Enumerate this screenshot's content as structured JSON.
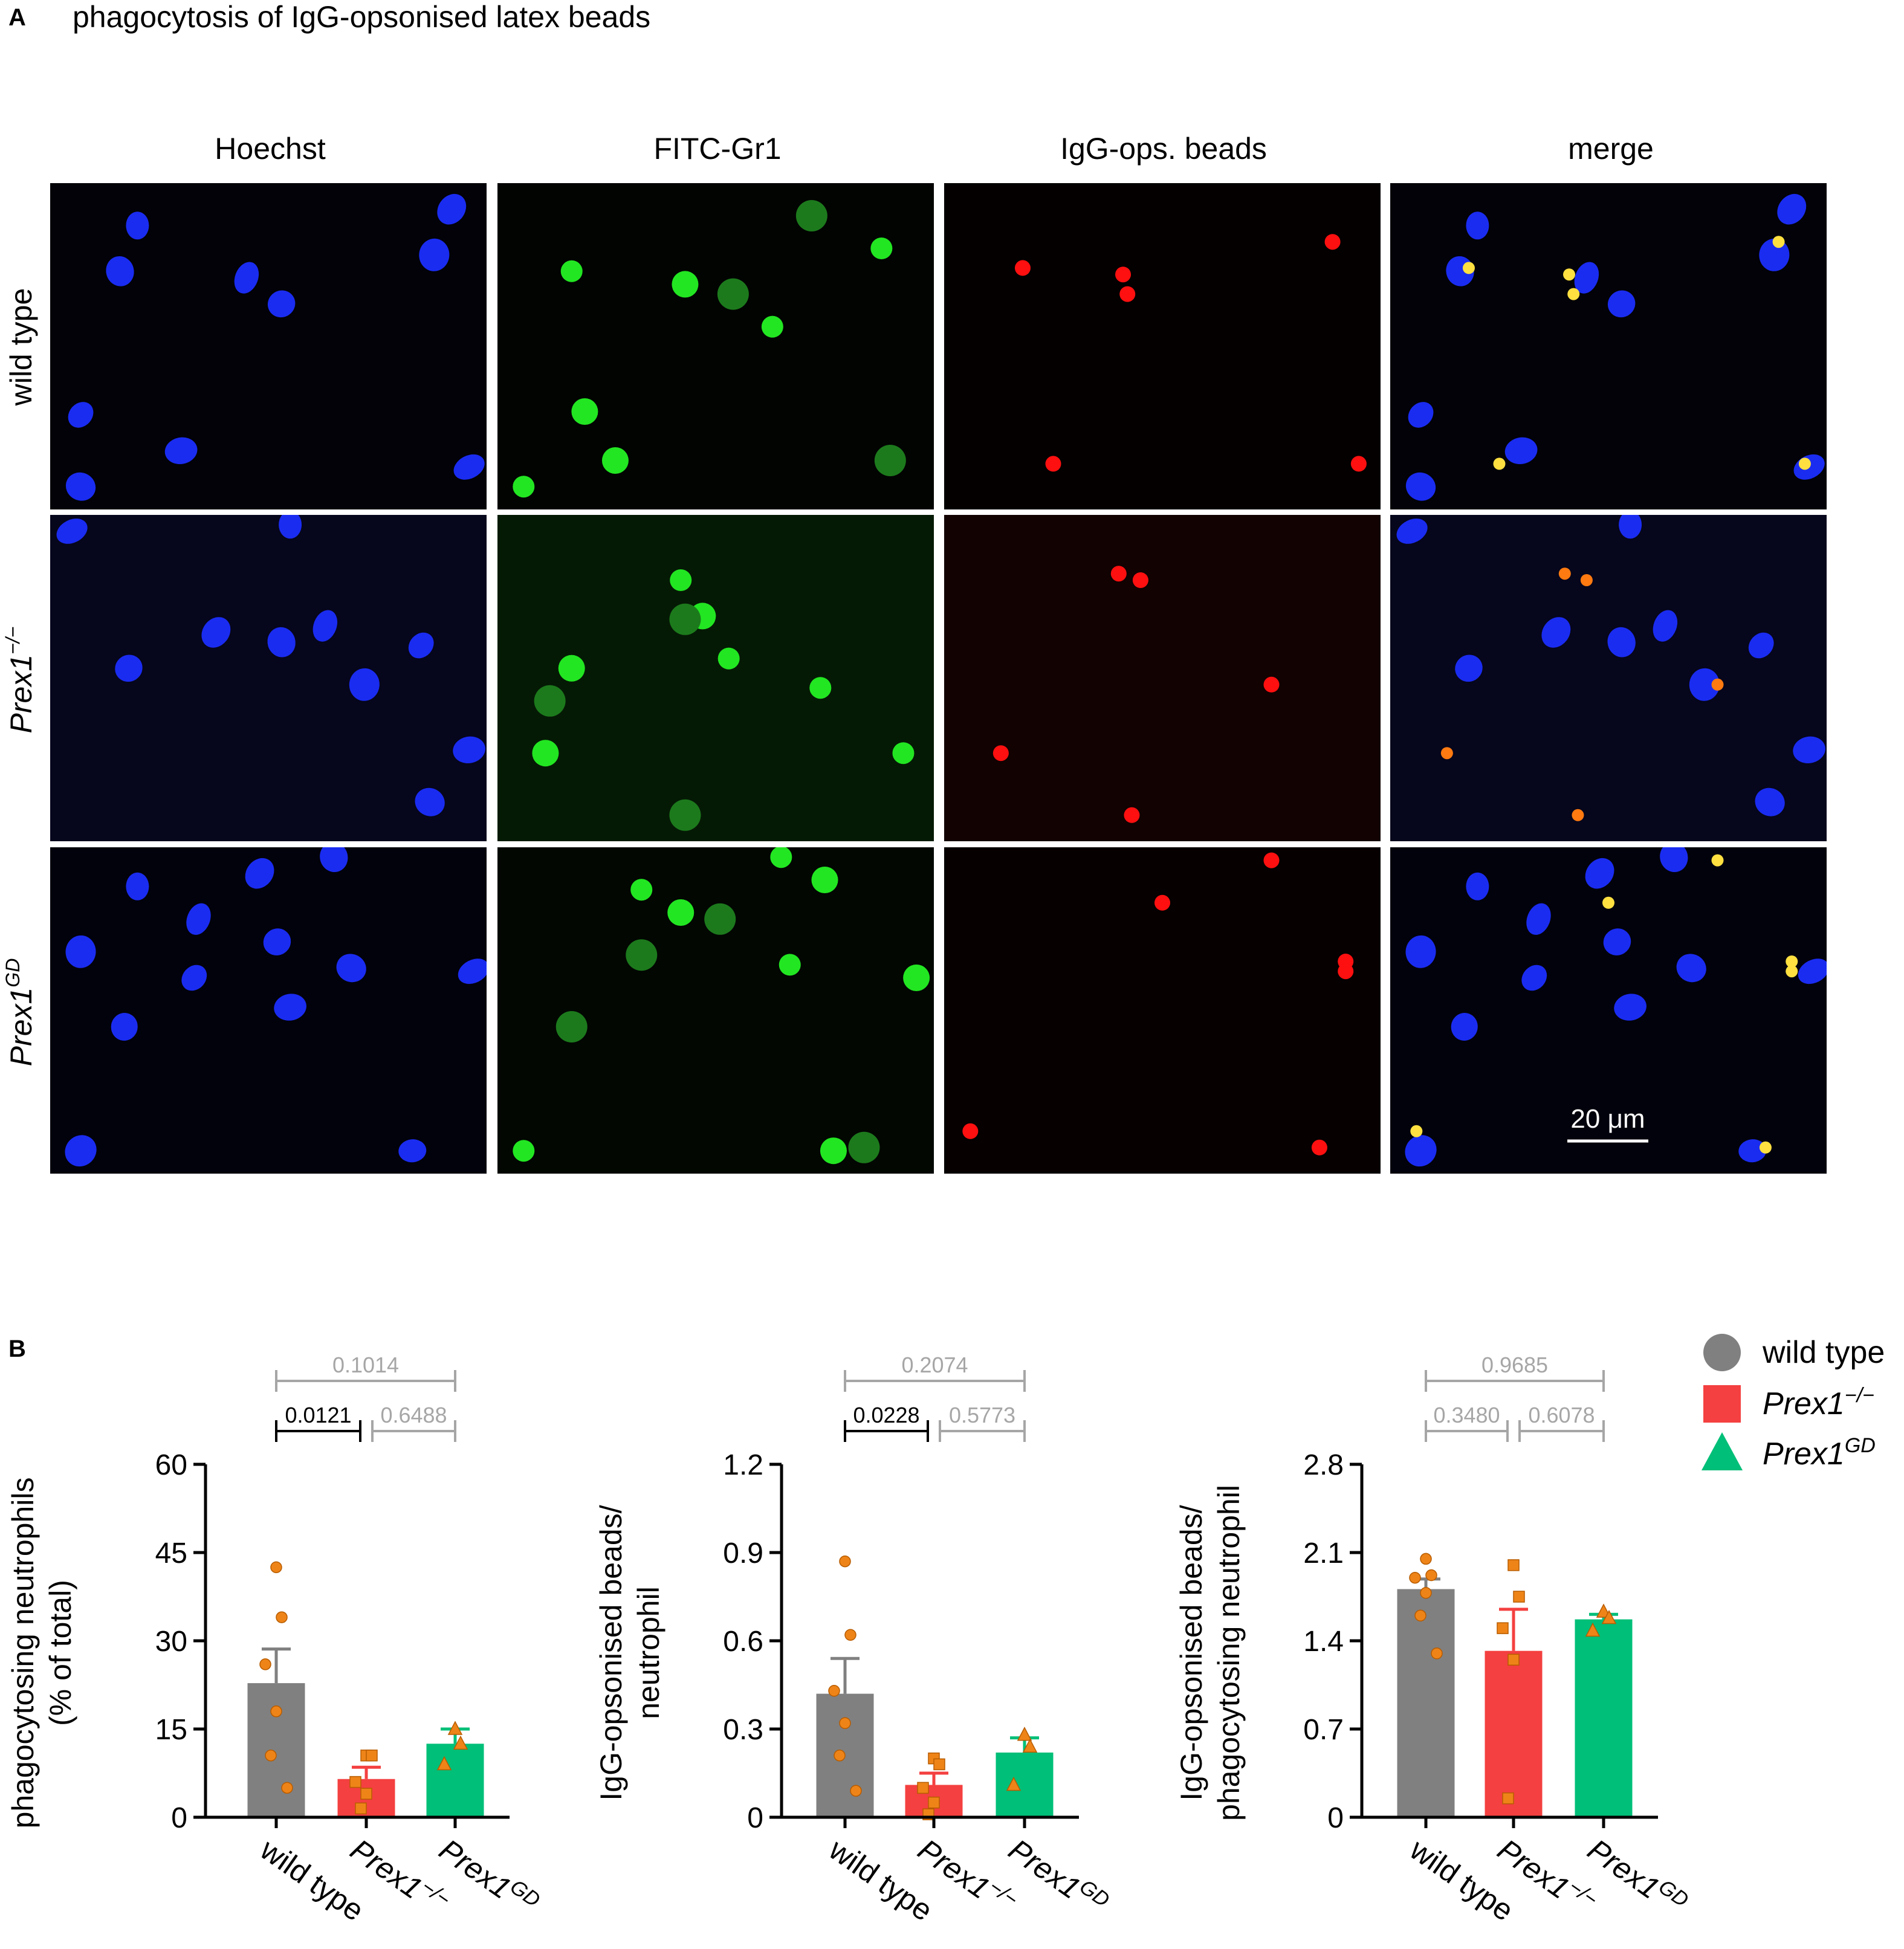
{
  "panel_a": {
    "letter": "A",
    "title": "phagocytosis of IgG-opsonised latex beads",
    "columns": [
      "Hoechst",
      "FITC-Gr1",
      "IgG-ops. beads",
      "merge"
    ],
    "rows": [
      {
        "base": "wild type",
        "sup": ""
      },
      {
        "base": "Prex1",
        "sup": "−/−"
      },
      {
        "base": "Prex1",
        "sup": "GD"
      }
    ],
    "scale_bar_label": "20 μm"
  },
  "panel_b": {
    "letter": "B",
    "legend": [
      {
        "base": "wild type",
        "sup": "",
        "shape": "circle",
        "color": "#808080"
      },
      {
        "base": "Prex1",
        "sup": "−/−",
        "shape": "square",
        "color": "#f44040"
      },
      {
        "base": "Prex1",
        "sup": "GD",
        "shape": "triangle",
        "color": "#00bf78"
      }
    ],
    "colors": {
      "wild_type": "#808080",
      "prex1_ko": "#f44040",
      "prex1_gd": "#00bf78",
      "points": "#ee8418",
      "sig": "#000000",
      "nonsig": "#a6a6a6"
    }
  },
  "chart_data": [
    {
      "type": "bar",
      "ylabel": [
        "phagocytosing neutrophils",
        "(% of total)"
      ],
      "ylim": [
        0,
        60
      ],
      "yticks": [
        "0",
        "15",
        "30",
        "45",
        "60"
      ],
      "categories": [
        {
          "base": "wild type",
          "sup": ""
        },
        {
          "base": "Prex1",
          "sup": "−/−"
        },
        {
          "base": "Prex1",
          "sup": "GD"
        }
      ],
      "means": [
        22.8,
        6.5,
        12.5
      ],
      "sem": [
        5.8,
        2.0,
        2.5
      ],
      "points": [
        [
          42.5,
          34,
          26,
          18,
          10.5,
          5
        ],
        [
          10.5,
          10.5,
          6,
          4,
          1.5
        ],
        [
          15,
          12.5,
          9
        ]
      ],
      "comparisons": [
        {
          "label": "0.1014",
          "from": 0,
          "to": 2,
          "sig": false
        },
        {
          "label": "0.0121",
          "from": 0,
          "to": 1,
          "sig": true
        },
        {
          "label": "0.6488",
          "from": 1,
          "to": 2,
          "sig": false
        }
      ]
    },
    {
      "type": "bar",
      "ylabel": [
        "IgG-opsonised beads/",
        "neutrophil"
      ],
      "ylim": [
        0,
        1.2
      ],
      "yticks": [
        "0",
        "0.3",
        "0.6",
        "0.9",
        "1.2"
      ],
      "categories": [
        {
          "base": "wild type",
          "sup": ""
        },
        {
          "base": "Prex1",
          "sup": "−/−"
        },
        {
          "base": "Prex1",
          "sup": "GD"
        }
      ],
      "means": [
        0.42,
        0.11,
        0.22
      ],
      "sem": [
        0.12,
        0.04,
        0.05
      ],
      "points": [
        [
          0.87,
          0.62,
          0.43,
          0.32,
          0.21,
          0.09
        ],
        [
          0.2,
          0.18,
          0.1,
          0.05,
          0.01
        ],
        [
          0.28,
          0.24,
          0.11
        ]
      ],
      "comparisons": [
        {
          "label": "0.2074",
          "from": 0,
          "to": 2,
          "sig": false
        },
        {
          "label": "0.0228",
          "from": 0,
          "to": 1,
          "sig": true
        },
        {
          "label": "0.5773",
          "from": 1,
          "to": 2,
          "sig": false
        }
      ]
    },
    {
      "type": "bar",
      "ylabel": [
        "IgG-opsonised beads/",
        "phagocytosing neutrophil"
      ],
      "ylim": [
        0,
        2.8
      ],
      "yticks": [
        "0",
        "0.7",
        "1.4",
        "2.1",
        "2.8"
      ],
      "categories": [
        {
          "base": "wild type",
          "sup": ""
        },
        {
          "base": "Prex1",
          "sup": "−/−"
        },
        {
          "base": "Prex1",
          "sup": "GD"
        }
      ],
      "means": [
        1.81,
        1.32,
        1.57
      ],
      "sem": [
        0.08,
        0.33,
        0.04
      ],
      "points": [
        [
          2.05,
          1.92,
          1.9,
          1.78,
          1.6,
          1.3
        ],
        [
          2.0,
          1.75,
          1.5,
          1.25,
          0.15
        ],
        [
          1.63,
          1.58,
          1.48
        ]
      ],
      "comparisons": [
        {
          "label": "0.9685",
          "from": 0,
          "to": 2,
          "sig": false
        },
        {
          "label": "0.3480",
          "from": 0,
          "to": 1,
          "sig": false
        },
        {
          "label": "0.6078",
          "from": 1,
          "to": 2,
          "sig": false
        }
      ]
    }
  ]
}
